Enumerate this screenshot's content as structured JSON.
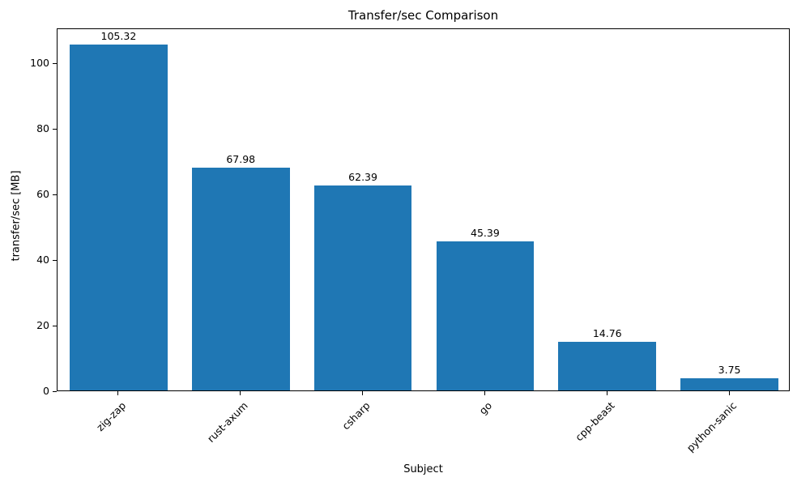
{
  "chart_data": {
    "type": "bar",
    "title": "Transfer/sec Comparison",
    "xlabel": "Subject",
    "ylabel": "transfer/sec [MB]",
    "categories": [
      "zig-zap",
      "rust-axum",
      "csharp",
      "go",
      "cpp-beast",
      "python-sanic"
    ],
    "values": [
      105.32,
      67.98,
      62.39,
      45.39,
      14.76,
      3.75
    ],
    "value_labels": [
      "105.32",
      "67.98",
      "62.39",
      "45.39",
      "14.76",
      "3.75"
    ],
    "yticks": [
      0,
      20,
      40,
      60,
      80,
      100
    ],
    "ylim": [
      0,
      110.6
    ],
    "bar_color": "#1f77b4",
    "bar_width_fraction": 0.8,
    "grid": false,
    "legend": "none"
  }
}
